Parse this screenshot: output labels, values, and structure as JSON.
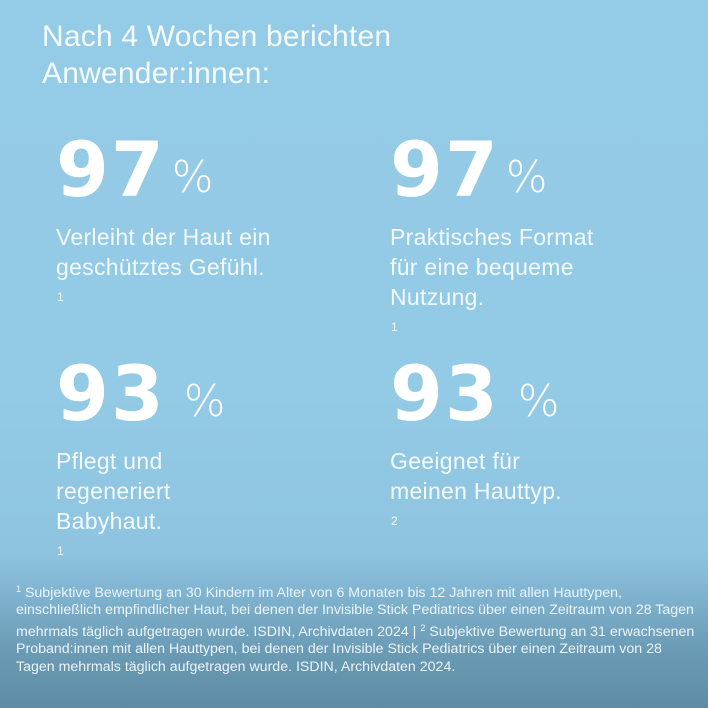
{
  "headline": {
    "line1": "Nach 4 Wochen berichten",
    "line2": "Anwender:innen:"
  },
  "stats": [
    {
      "value": "97",
      "unit": "%",
      "lines": [
        "Verleiht der Haut ein",
        "geschütztes Gefühl."
      ],
      "footnote_ref": "1"
    },
    {
      "value": "97",
      "unit": "%",
      "lines": [
        "Praktisches Format",
        "für eine bequeme",
        "Nutzung."
      ],
      "footnote_ref": "1"
    },
    {
      "value": "93",
      "unit": "%",
      "lines": [
        "Pflegt und",
        "regeneriert",
        "Babyhaut."
      ],
      "footnote_ref": "1"
    },
    {
      "value": "93",
      "unit": "%",
      "lines": [
        "Geeignet für",
        "meinen Hauttyp."
      ],
      "footnote_ref": "2"
    }
  ],
  "footnote": {
    "ref1": "1",
    "text1": " Subjektive Bewertung an 30 Kindern im Alter von 6 Monaten bis 12 Jahren mit allen Hauttypen, einschließlich empfindlicher Haut, bei denen der Invisible Stick Pediatrics über einen Zeitraum von 28 Tagen mehrmals täglich aufgetragen wurde. ISDIN, Archivdaten 2024 | ",
    "ref2": "2",
    "text2": " Subjektive Bewertung an 31 erwachsenen Proband:innen mit allen Hauttypen, bei denen der Invisible Stick Pediatrics über einen Zeitraum von 28 Tagen mehrmals täglich aufgetragen wurde. ISDIN, Archivdaten 2024."
  },
  "colors": {
    "background_top": "#94cbe6",
    "background_bottom": "#5e8ca5",
    "text": "#ffffff"
  }
}
